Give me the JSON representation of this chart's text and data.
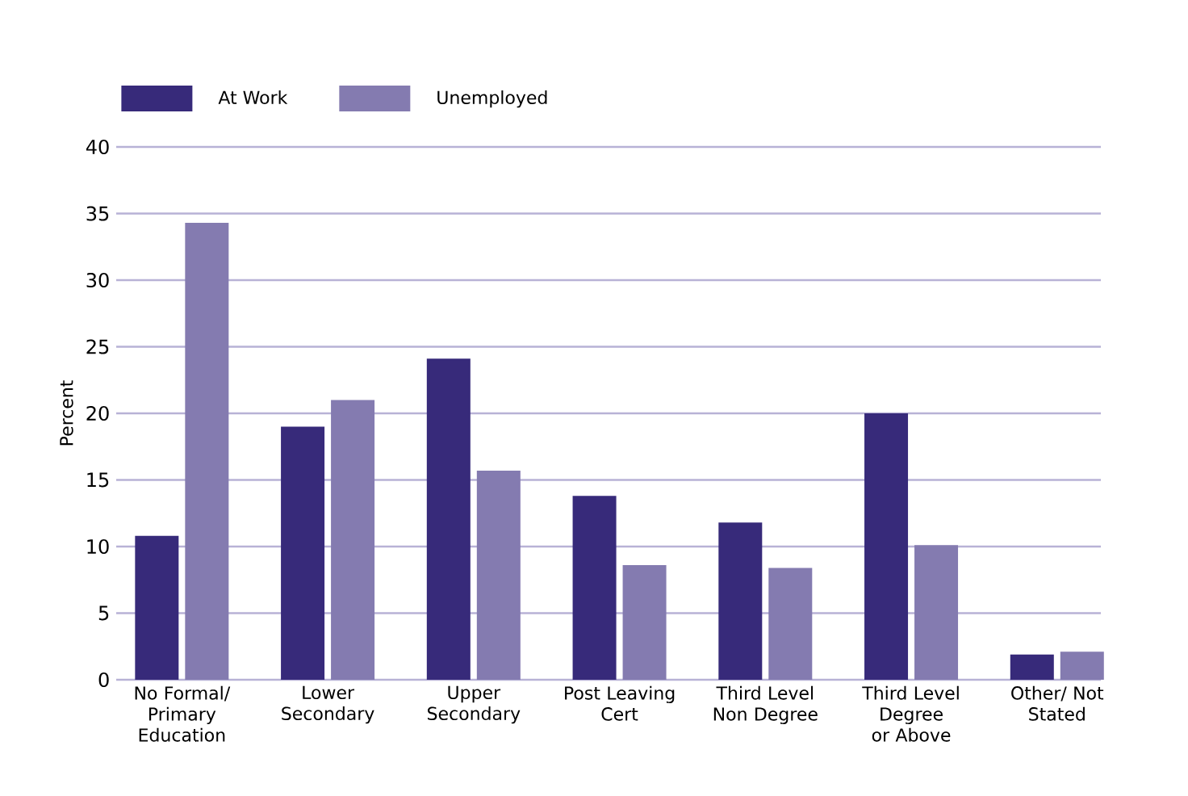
{
  "chart_data": {
    "type": "bar",
    "ylabel": "Percent",
    "categories": [
      "No Formal/ Primary Education",
      "Lower Secondary",
      "Upper Secondary",
      "Post Leaving Cert",
      "Third Level Non Degree",
      "Third Level Degree or Above",
      "Other/ Not Stated"
    ],
    "series": [
      {
        "name": "At Work",
        "color": "#372a7a",
        "values": [
          10.8,
          19.0,
          24.1,
          13.8,
          11.8,
          20.0,
          1.9
        ]
      },
      {
        "name": "Unemployed",
        "color": "#847bb0",
        "values": [
          34.3,
          21.0,
          15.7,
          8.6,
          8.4,
          10.1,
          2.1
        ]
      }
    ],
    "ylim": [
      0,
      40
    ],
    "yticks": [
      0,
      5,
      10,
      15,
      20,
      25,
      30,
      35,
      40
    ],
    "grid": "y",
    "legend": "top left"
  }
}
